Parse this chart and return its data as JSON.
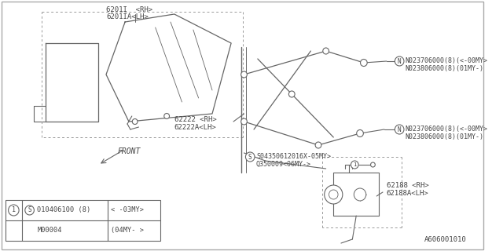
{
  "bg_color": "#ffffff",
  "line_color": "#666666",
  "text_color": "#444444",
  "diagram_code": "A606001010",
  "front_label": "FRONT",
  "labels": {
    "glass1": "6201I  <RH>",
    "glass2": "6201IA<LH>",
    "reg1": "62222 <RH>",
    "reg2": "62222A<LH>",
    "motor1": "62188 <RH>",
    "motor2": "62188A<LH>",
    "bolt1a": "N023706000(8)(<-00MY>",
    "bolt1b": "N023806000(8)(01MY-)",
    "bolt2a": "N023706000(8)(<-00MY>",
    "bolt2b": "N023806000(8)(01MY-)",
    "screw1": "S04350612016X-05MY>",
    "screw2": "Q350009<06MY->",
    "tbl_s": "S",
    "tbl_p1": "010406100 (8)",
    "tbl_v1": "< -03MY>",
    "tbl_p2": "M00004",
    "tbl_v2": "(04MY- >"
  }
}
